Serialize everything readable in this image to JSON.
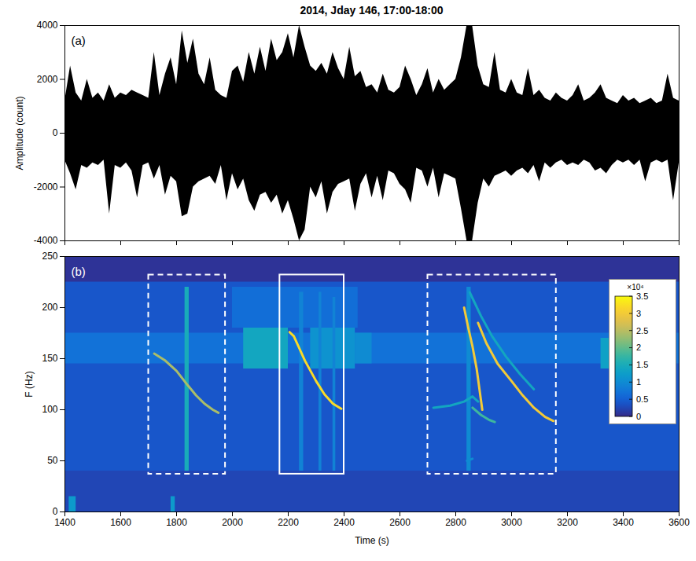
{
  "chart_data": [
    {
      "type": "envelope",
      "title": "2014, Jday 146, 17:00-18:00",
      "panel_label": "(a)",
      "y_label": "Amplitude (count)",
      "color": "#000000",
      "xlim": [
        1400,
        3600
      ],
      "xticks": [
        1400,
        1600,
        1800,
        2000,
        2200,
        2400,
        2600,
        2800,
        3000,
        3200,
        3400,
        3600
      ],
      "ylim": [
        -4000,
        4000
      ],
      "yticks": [
        -4000,
        -2000,
        0,
        2000,
        4000
      ],
      "tick_labels": "y",
      "x": [
        1400,
        1420,
        1440,
        1460,
        1480,
        1500,
        1520,
        1540,
        1560,
        1580,
        1600,
        1620,
        1640,
        1660,
        1680,
        1700,
        1720,
        1740,
        1760,
        1780,
        1800,
        1820,
        1840,
        1860,
        1880,
        1900,
        1920,
        1940,
        1960,
        1980,
        2000,
        2020,
        2040,
        2060,
        2080,
        2100,
        2120,
        2140,
        2160,
        2180,
        2200,
        2220,
        2240,
        2260,
        2280,
        2300,
        2320,
        2340,
        2360,
        2380,
        2400,
        2420,
        2440,
        2460,
        2480,
        2500,
        2520,
        2540,
        2560,
        2580,
        2600,
        2620,
        2640,
        2660,
        2680,
        2700,
        2720,
        2740,
        2760,
        2780,
        2800,
        2820,
        2840,
        2860,
        2880,
        2900,
        2920,
        2940,
        2960,
        2980,
        3000,
        3020,
        3040,
        3060,
        3080,
        3100,
        3120,
        3140,
        3160,
        3180,
        3200,
        3220,
        3240,
        3260,
        3280,
        3300,
        3320,
        3340,
        3360,
        3380,
        3400,
        3420,
        3440,
        3460,
        3480,
        3500,
        3520,
        3540,
        3560,
        3580,
        3600
      ],
      "upper": [
        1200,
        2500,
        1500,
        1200,
        2000,
        1300,
        1500,
        1200,
        1800,
        1300,
        1500,
        1400,
        1600,
        1500,
        1400,
        1300,
        3000,
        1400,
        2200,
        2800,
        1800,
        3800,
        2600,
        3500,
        2200,
        1800,
        2800,
        1600,
        1400,
        1300,
        2300,
        2500,
        1900,
        3000,
        2200,
        3200,
        2300,
        3500,
        2700,
        3000,
        3700,
        2800,
        4000,
        3200,
        2500,
        2300,
        2600,
        2200,
        3000,
        2400,
        2000,
        3200,
        2100,
        2300,
        1700,
        1800,
        1500,
        2200,
        1600,
        1500,
        1700,
        2500,
        2000,
        1400,
        1800,
        2400,
        1500,
        2000,
        1600,
        1800,
        2000,
        2800,
        4000,
        4000,
        2500,
        1800,
        1700,
        3000,
        1600,
        1500,
        2000,
        1500,
        1400,
        2400,
        1400,
        1600,
        1300,
        1200,
        1500,
        1300,
        1200,
        1400,
        1800,
        1200,
        1300,
        1500,
        1800,
        1300,
        1200,
        1100,
        1400,
        1200,
        1300,
        1100,
        1200,
        1300,
        1100,
        1200,
        2200,
        1300,
        1200
      ],
      "lower": [
        -1000,
        -1500,
        -2100,
        -1200,
        -1300,
        -1100,
        -1200,
        -1000,
        -3000,
        -1200,
        -1300,
        -1100,
        -1400,
        -2400,
        -1200,
        -1100,
        -1700,
        -1200,
        -2300,
        -1600,
        -1800,
        -3100,
        -3000,
        -2000,
        -1800,
        -1700,
        -1600,
        -1900,
        -1200,
        -2500,
        -1500,
        -2100,
        -1700,
        -2500,
        -2900,
        -2300,
        -2200,
        -2600,
        -2300,
        -3000,
        -2500,
        -3200,
        -4000,
        -3600,
        -2000,
        -2400,
        -1800,
        -3000,
        -2200,
        -1900,
        -1800,
        -1700,
        -2900,
        -1900,
        -1500,
        -2400,
        -1600,
        -2500,
        -1400,
        -1500,
        -1900,
        -2100,
        -2600,
        -1300,
        -1400,
        -2000,
        -1300,
        -2400,
        -1500,
        -1600,
        -1700,
        -2800,
        -4000,
        -4000,
        -2600,
        -1700,
        -2000,
        -1600,
        -1500,
        -1400,
        -1600,
        -1400,
        -1300,
        -1500,
        -1200,
        -1800,
        -1100,
        -1300,
        -1100,
        -1000,
        -1200,
        -1100,
        -1200,
        -1000,
        -1100,
        -1400,
        -1300,
        -1500,
        -1200,
        -1000,
        -1100,
        -1000,
        -1200,
        -1000,
        -1800,
        -1100,
        -1000,
        -1100,
        -1000,
        -2500,
        -1100
      ]
    },
    {
      "type": "spectrogram",
      "panel_label": "(b)",
      "x_label": "Time (s)",
      "y_label": "F (Hz)",
      "xlim": [
        1400,
        3600
      ],
      "xticks": [
        1400,
        1600,
        1800,
        2000,
        2200,
        2400,
        2600,
        2800,
        3000,
        3200,
        3400,
        3600
      ],
      "ylim": [
        0,
        250
      ],
      "yticks": [
        0,
        50,
        100,
        150,
        200,
        250
      ],
      "background": 4000,
      "cells": [
        {
          "x0": 1400,
          "x1": 3600,
          "y0": 225,
          "y1": 250,
          "value": 800
        },
        {
          "x0": 1400,
          "x1": 3600,
          "y0": 0,
          "y1": 40,
          "value": 2500
        },
        {
          "x0": 1400,
          "x1": 3600,
          "y0": 145,
          "y1": 175,
          "value": 7000
        },
        {
          "x0": 2000,
          "x1": 2450,
          "y0": 180,
          "y1": 220,
          "value": 6500
        },
        {
          "x0": 2040,
          "x1": 2200,
          "y0": 140,
          "y1": 180,
          "value": 14000
        },
        {
          "x0": 2280,
          "x1": 2440,
          "y0": 140,
          "y1": 180,
          "value": 11000
        },
        {
          "x0": 2440,
          "x1": 2500,
          "y0": 145,
          "y1": 175,
          "value": 10000
        },
        {
          "x0": 3320,
          "x1": 3360,
          "y0": 140,
          "y1": 170,
          "value": 13000
        },
        {
          "x0": 1830,
          "x1": 1845,
          "y0": 40,
          "y1": 220,
          "value": 15000
        },
        {
          "x0": 2240,
          "x1": 2255,
          "y0": 40,
          "y1": 215,
          "value": 9000
        },
        {
          "x0": 2310,
          "x1": 2320,
          "y0": 40,
          "y1": 215,
          "value": 9000
        },
        {
          "x0": 2360,
          "x1": 2370,
          "y0": 40,
          "y1": 210,
          "value": 9000
        },
        {
          "x0": 2840,
          "x1": 2855,
          "y0": 40,
          "y1": 220,
          "value": 10000
        },
        {
          "x0": 1415,
          "x1": 1440,
          "y0": 0,
          "y1": 15,
          "value": 12000
        },
        {
          "x0": 1780,
          "x1": 1795,
          "y0": 0,
          "y1": 15,
          "value": 12000
        }
      ],
      "tracks": [
        {
          "value": 24000,
          "points": [
            [
              1720,
              155
            ],
            [
              1760,
              148
            ],
            [
              1800,
              138
            ],
            [
              1840,
              124
            ],
            [
              1870,
              114
            ],
            [
              1900,
              106
            ],
            [
              1930,
              100
            ],
            [
              1950,
              97
            ]
          ]
        },
        {
          "value": 32000,
          "points": [
            [
              2205,
              176
            ],
            [
              2220,
              172
            ],
            [
              2240,
              160
            ],
            [
              2260,
              148
            ],
            [
              2280,
              138
            ],
            [
              2300,
              128
            ],
            [
              2330,
              115
            ],
            [
              2360,
              106
            ],
            [
              2390,
              101
            ]
          ]
        },
        {
          "value": 30000,
          "points": [
            [
              2830,
              200
            ],
            [
              2845,
              180
            ],
            [
              2860,
              162
            ],
            [
              2875,
              140
            ],
            [
              2885,
              120
            ],
            [
              2895,
              100
            ]
          ]
        },
        {
          "value": 30000,
          "points": [
            [
              2880,
              185
            ],
            [
              2910,
              165
            ],
            [
              2950,
              145
            ],
            [
              3000,
              128
            ],
            [
              3040,
              114
            ],
            [
              3080,
              102
            ],
            [
              3120,
              93
            ],
            [
              3150,
              89
            ]
          ]
        },
        {
          "value": 14000,
          "points": [
            [
              2850,
              215
            ],
            [
              2890,
              192
            ],
            [
              2930,
              172
            ],
            [
              2980,
              152
            ],
            [
              3030,
              135
            ],
            [
              3080,
              120
            ]
          ]
        },
        {
          "value": 14000,
          "points": [
            [
              2720,
              102
            ],
            [
              2780,
              104
            ],
            [
              2830,
              108
            ],
            [
              2860,
              113
            ],
            [
              2880,
              108
            ]
          ]
        },
        {
          "value": 18000,
          "points": [
            [
              2860,
              102
            ],
            [
              2890,
              95
            ],
            [
              2920,
              90
            ],
            [
              2940,
              88
            ]
          ]
        },
        {
          "value": 10000,
          "points": [
            [
              2840,
              50
            ],
            [
              2860,
              52
            ]
          ]
        }
      ],
      "boxes": [
        {
          "x0": 1700,
          "x1": 1975,
          "y0": 37,
          "y1": 232,
          "line_style": "dashed",
          "color": "#ffffff"
        },
        {
          "x0": 2170,
          "x1": 2400,
          "y0": 37,
          "y1": 232,
          "line_style": "solid",
          "color": "#ffffff"
        },
        {
          "x0": 2700,
          "x1": 3160,
          "y0": 37,
          "y1": 232,
          "line_style": "dashed",
          "color": "#ffffff"
        }
      ],
      "colorbar": {
        "range": [
          0,
          35000
        ],
        "label": "×10⁴",
        "ticks": [
          {
            "value": 0,
            "label": "0"
          },
          {
            "value": 5000,
            "label": "0.5"
          },
          {
            "value": 10000,
            "label": "1"
          },
          {
            "value": 15000,
            "label": "1.5"
          },
          {
            "value": 20000,
            "label": "2"
          },
          {
            "value": 25000,
            "label": "2.5"
          },
          {
            "value": 30000,
            "label": "3"
          },
          {
            "value": 35000,
            "label": "3.5"
          }
        ]
      }
    }
  ]
}
